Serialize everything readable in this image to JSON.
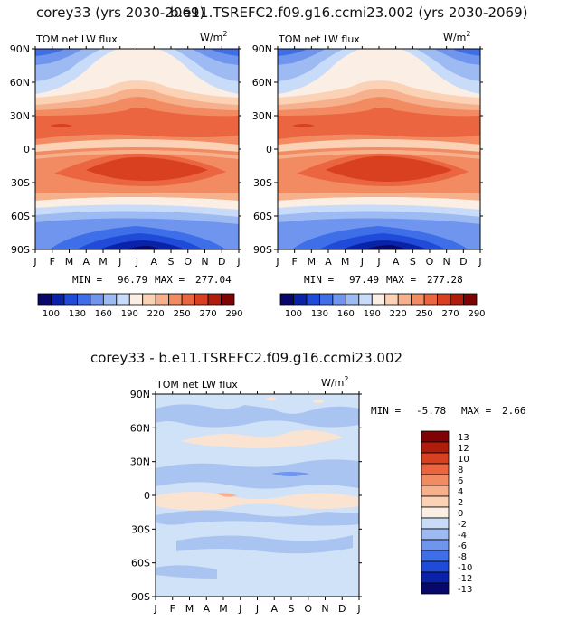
{
  "titles": {
    "left": "corey33 (yrs 2030-2069)",
    "right": "b.e11.TSREFC2.f09.g16.ccmi23.002 (yrs 2030-2069)",
    "bottom": "corey33 - b.e11.TSREFC2.f09.g16.ccmi23.002"
  },
  "chart_data": [
    {
      "type": "heatmap",
      "variable": "TOM net LW flux",
      "units": "W/m",
      "units_sup": "2",
      "x_ticks": [
        "J",
        "F",
        "M",
        "A",
        "M",
        "J",
        "J",
        "A",
        "S",
        "O",
        "N",
        "D",
        "J"
      ],
      "y_ticks": [
        "90N",
        "60N",
        "30N",
        "0",
        "30S",
        "60S",
        "90S"
      ],
      "ylim": [
        -90,
        90
      ],
      "min_label": "MIN =",
      "min": "96.79",
      "max_label": "MAX =",
      "max": "277.04",
      "colorbar_labels": [
        "100",
        "130",
        "160",
        "190",
        "220",
        "250",
        "270",
        "290"
      ]
    },
    {
      "type": "heatmap",
      "variable": "TOM net LW flux",
      "units": "W/m",
      "units_sup": "2",
      "x_ticks": [
        "J",
        "F",
        "M",
        "A",
        "M",
        "J",
        "J",
        "A",
        "S",
        "O",
        "N",
        "D",
        "J"
      ],
      "y_ticks": [
        "90N",
        "60N",
        "30N",
        "0",
        "30S",
        "60S",
        "90S"
      ],
      "ylim": [
        -90,
        90
      ],
      "min_label": "MIN =",
      "min": "97.49",
      "max_label": "MAX =",
      "max": "277.28",
      "colorbar_labels": [
        "100",
        "130",
        "160",
        "190",
        "220",
        "250",
        "270",
        "290"
      ]
    },
    {
      "type": "heatmap",
      "variable": "TOM net LW flux",
      "units": "W/m",
      "units_sup": "2",
      "x_ticks": [
        "J",
        "F",
        "M",
        "A",
        "M",
        "J",
        "J",
        "A",
        "S",
        "O",
        "N",
        "D",
        "J"
      ],
      "y_ticks": [
        "90N",
        "60N",
        "30N",
        "0",
        "30S",
        "60S",
        "90S"
      ],
      "ylim": [
        -90,
        90
      ],
      "min_label": "MIN =",
      "min": "-5.78",
      "max_label": "MAX =",
      "max": "2.66",
      "colorbar_labels": [
        "13",
        "12",
        "10",
        "8",
        "6",
        "4",
        "2",
        "0",
        "-2",
        "-4",
        "-6",
        "-8",
        "-10",
        "-12",
        "-13"
      ]
    }
  ],
  "colors": {
    "abs_palette": [
      "#08086b",
      "#0a22a8",
      "#1f4bd8",
      "#3f6fe8",
      "#6f95ef",
      "#9dbaf3",
      "#c8dcfa",
      "#fbeee4",
      "#fbd2b6",
      "#f7b08c",
      "#f28a62",
      "#eb6540",
      "#d8401f",
      "#b01d0d",
      "#7f0303"
    ],
    "diff_palette": [
      "#7f0303",
      "#b01d0d",
      "#d8401f",
      "#eb6540",
      "#f28a62",
      "#f7b08c",
      "#fbd2b6",
      "#fbeee4",
      "#c8dcfa",
      "#9dbaf3",
      "#6f95ef",
      "#3f6fe8",
      "#1f4bd8",
      "#0a22a8",
      "#08086b"
    ],
    "diff_background": "#cfe2f8",
    "diff_negative": "#a9c4f1",
    "diff_positive": "#fbe3d2"
  }
}
